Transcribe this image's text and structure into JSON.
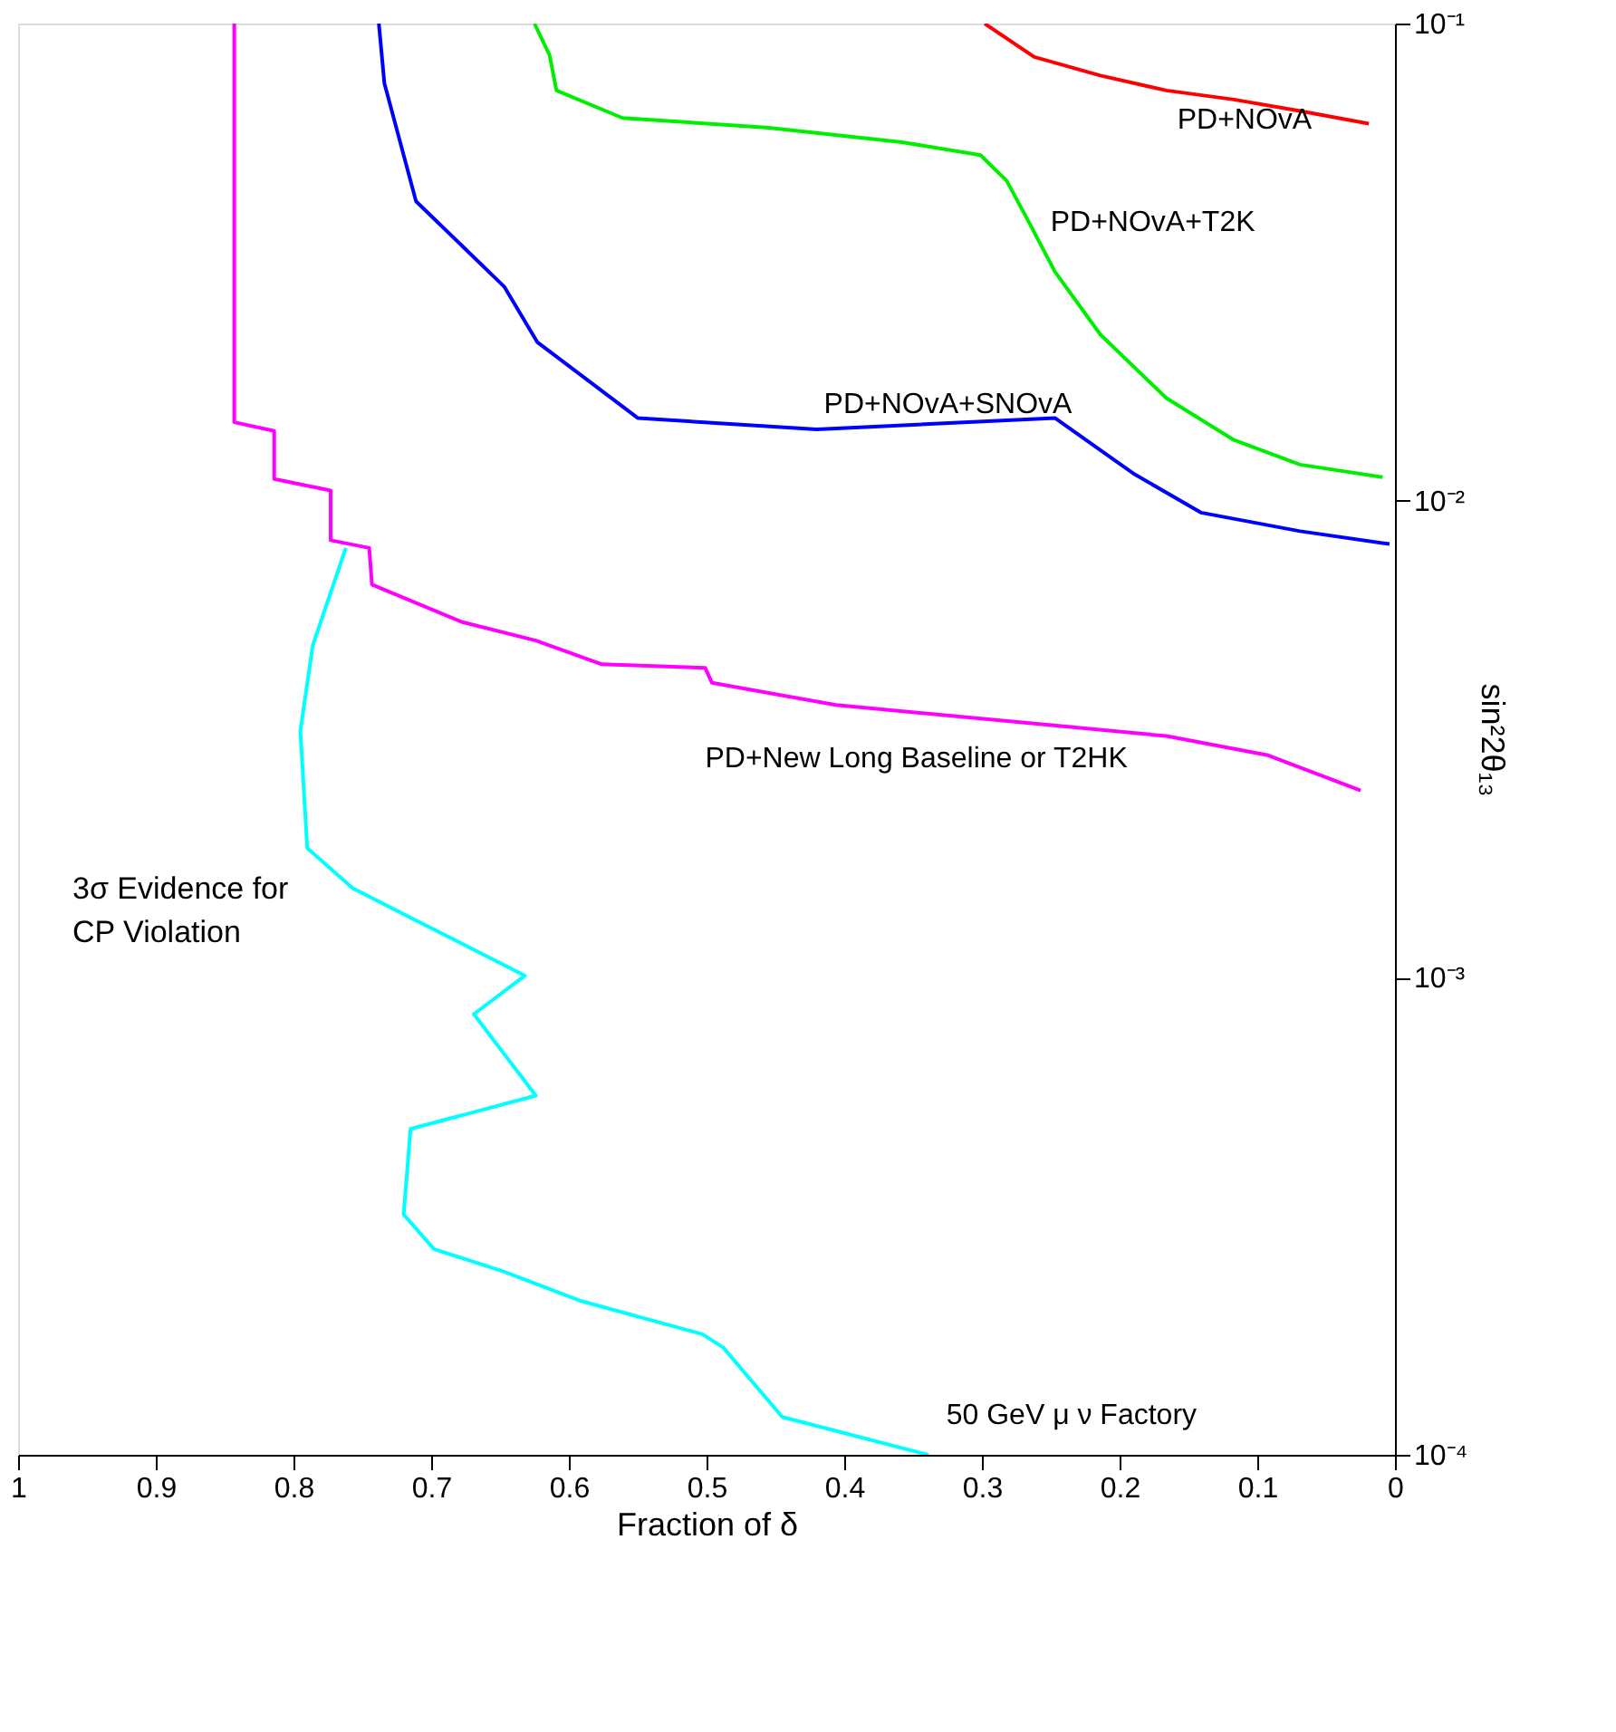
{
  "chart_data": {
    "type": "line",
    "xlabel": "Fraction of δ",
    "ylabel": "sin²2θ₁₃",
    "annotations": [
      "3σ Evidence for CP Violation"
    ],
    "log": "y",
    "grid": false,
    "legend": false,
    "marker": "none",
    "line_style": "solid",
    "xlim": [
      1,
      0
    ],
    "xticks": [
      0,
      0.1,
      0.2,
      0.3,
      0.4,
      0.5,
      0.6,
      0.7,
      0.8,
      0.9,
      1
    ],
    "ylim": [
      0.0001,
      0.1
    ],
    "yticks": [
      {
        "value": 0.0001,
        "label": "10⁻⁴"
      },
      {
        "value": 0.001,
        "label": "10⁻³"
      },
      {
        "value": 0.01,
        "label": "10⁻²"
      },
      {
        "value": 0.1,
        "label": "10⁻¹"
      }
    ],
    "series": [
      {
        "name": "PD+NOvA",
        "color": "#ff0000",
        "x": [
          0.298,
          0.262,
          0.214,
          0.166,
          0.117,
          0.069,
          0.019
        ],
        "values": [
          0.1,
          0.0851,
          0.0778,
          0.0724,
          0.0693,
          0.0656,
          0.0617
        ]
      },
      {
        "name": "PD+NOvA+T2K",
        "color": "#00ee00",
        "x": [
          0.625,
          0.614,
          0.609,
          0.561,
          0.455,
          0.358,
          0.301,
          0.282,
          0.266,
          0.247,
          0.214,
          0.166,
          0.117,
          0.069,
          0.009
        ],
        "values": [
          0.1,
          0.0859,
          0.0724,
          0.0634,
          0.0605,
          0.0564,
          0.053,
          0.0468,
          0.0384,
          0.0302,
          0.0223,
          0.0164,
          0.0134,
          0.0119,
          0.0112
        ]
      },
      {
        "name": "PD+NOvA+SNOvA",
        "color": "#0000ff",
        "x": [
          0.738,
          0.734,
          0.711,
          0.647,
          0.623,
          0.55,
          0.42,
          0.247,
          0.19,
          0.141,
          0.069,
          0.004
        ],
        "values": [
          0.1,
          0.075,
          0.0424,
          0.0281,
          0.0215,
          0.0149,
          0.0141,
          0.0149,
          0.0114,
          0.00944,
          0.00863,
          0.00811
        ]
      },
      {
        "name": "PD+New Long Baseline or T2HK",
        "color": "#ff00ff",
        "x": [
          0.843,
          0.843,
          0.814,
          0.814,
          0.773,
          0.773,
          0.745,
          0.743,
          0.678,
          0.624,
          0.576,
          0.501,
          0.496,
          0.406,
          0.262,
          0.166,
          0.093,
          0.025
        ],
        "values": [
          0.1,
          0.0146,
          0.014,
          0.0111,
          0.0105,
          0.00826,
          0.00796,
          0.00667,
          0.00557,
          0.00509,
          0.00454,
          0.00446,
          0.00415,
          0.00373,
          0.00341,
          0.00321,
          0.00293,
          0.00247
        ]
      },
      {
        "name": "50 GeV μ ν Factory",
        "color": "#00ffff",
        "x": [
          0.339,
          0.445,
          0.488,
          0.503,
          0.591,
          0.647,
          0.698,
          0.72,
          0.715,
          0.624,
          0.669,
          0.632,
          0.757,
          0.79,
          0.795,
          0.786,
          0.762
        ],
        "values": [
          0.0001,
          0.00012,
          0.000168,
          0.000179,
          0.00021,
          0.000242,
          0.00027,
          0.000319,
          0.000482,
          0.000566,
          0.000839,
          0.00101,
          0.00154,
          0.00187,
          0.00329,
          0.00497,
          0.00796
        ]
      }
    ]
  }
}
